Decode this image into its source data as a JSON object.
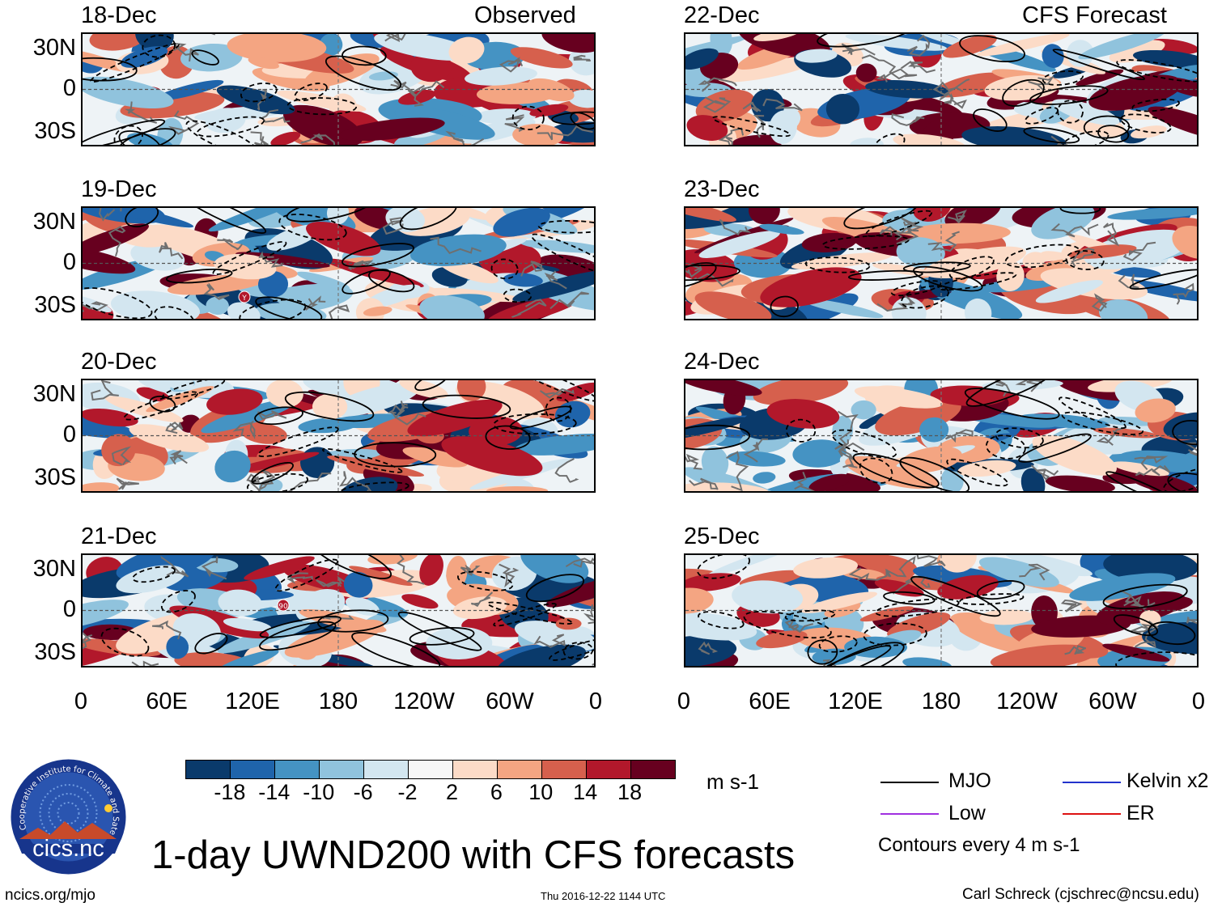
{
  "panel_headers": {
    "observed": "Observed",
    "forecast": "CFS Forecast"
  },
  "observed_dates": [
    "18-Dec",
    "19-Dec",
    "20-Dec",
    "21-Dec"
  ],
  "forecast_dates": [
    "22-Dec",
    "23-Dec",
    "24-Dec",
    "25-Dec"
  ],
  "lat_labels": [
    "30N",
    "0",
    "30S"
  ],
  "lon_labels": [
    "0",
    "60E",
    "120E",
    "180",
    "120W",
    "60W",
    "0"
  ],
  "colorbar": {
    "labels": [
      "-18",
      "-14",
      "-10",
      "-6",
      "-2",
      "2",
      "6",
      "10",
      "14",
      "18"
    ],
    "colors": [
      "#0a3a6b",
      "#1f64ab",
      "#4593c3",
      "#90c3dd",
      "#d3e6f0",
      "#f7f7f7",
      "#fcdbc7",
      "#f4a582",
      "#d6604d",
      "#b2182b",
      "#67001f"
    ],
    "units": "m s-1"
  },
  "legend": {
    "items": [
      {
        "label": "MJO",
        "color": "#000000"
      },
      {
        "label": "Kelvin x2",
        "color": "#2233cc"
      },
      {
        "label": "Low",
        "color": "#a030e0"
      },
      {
        "label": "ER",
        "color": "#dd1111"
      }
    ],
    "note": "Contours every 4 m s-1"
  },
  "logo_text": "cics.nc",
  "logo_ring_text": "Cooperative Institute for Climate and Satellites",
  "title": "1-day UWND200 with CFS forecasts",
  "footer": {
    "left": "ncics.org/mjo",
    "center": "Thu 2016-12-22 1144 UTC",
    "right": "Carl Schreck (cjschrec@ncsu.edu)"
  },
  "storm_markers": {
    "19-Dec": "Y",
    "21-Dec": "90"
  },
  "chart_data": {
    "type": "heatmap",
    "variable": "200-hPa zonal wind anomaly (1-day)",
    "units": "m s-1",
    "contour_levels": [
      -18,
      -14,
      -10,
      -6,
      -2,
      2,
      6,
      10,
      14,
      18
    ],
    "xlabel": "",
    "ylabel": "",
    "x_ticks": [
      "0",
      "60E",
      "120E",
      "180",
      "120W",
      "60W",
      "0"
    ],
    "y_ticks": [
      "30N",
      "0",
      "30S"
    ],
    "xlim": [
      0,
      360
    ],
    "ylim": [
      -40,
      40
    ],
    "panels": [
      {
        "date": "18-Dec",
        "source": "Observed"
      },
      {
        "date": "19-Dec",
        "source": "Observed"
      },
      {
        "date": "20-Dec",
        "source": "Observed"
      },
      {
        "date": "21-Dec",
        "source": "Observed"
      },
      {
        "date": "22-Dec",
        "source": "CFS Forecast"
      },
      {
        "date": "23-Dec",
        "source": "CFS Forecast"
      },
      {
        "date": "24-Dec",
        "source": "CFS Forecast"
      },
      {
        "date": "25-Dec",
        "source": "CFS Forecast"
      }
    ]
  }
}
